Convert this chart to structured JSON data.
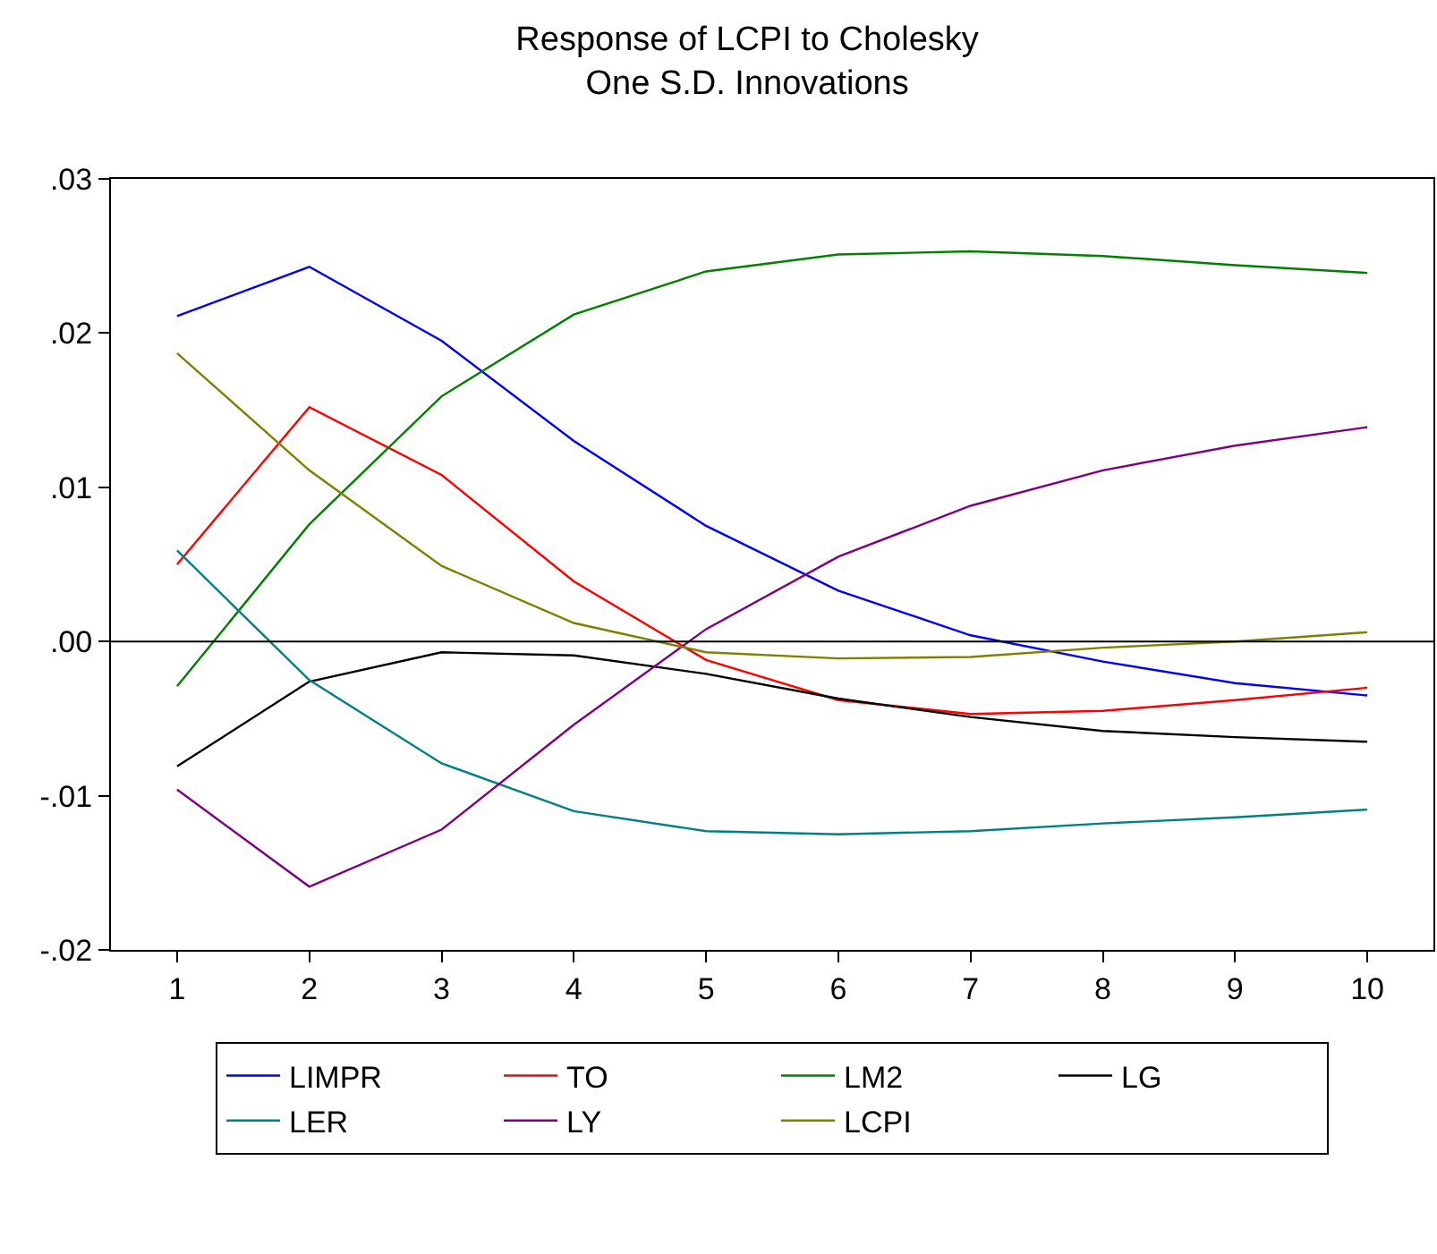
{
  "chart_data": {
    "type": "line",
    "title": "Response of LCPI to Cholesky\nOne S.D. Innovations",
    "categories": [
      "1",
      "2",
      "3",
      "4",
      "5",
      "6",
      "7",
      "8",
      "9",
      "10"
    ],
    "ylim": [
      -0.02,
      0.03
    ],
    "yticks": [
      {
        "value": -0.02,
        "label": "-.02"
      },
      {
        "value": -0.01,
        "label": "-.01"
      },
      {
        "value": 0,
        "label": ".00"
      },
      {
        "value": 0.01,
        "label": ".01"
      },
      {
        "value": 0.02,
        "label": ".02"
      },
      {
        "value": 0.03,
        "label": ".03"
      }
    ],
    "grid": false,
    "legend": "bottom",
    "marker": "none",
    "line_style": "solid",
    "ref_lines": [
      {
        "axis": "y",
        "value": 0,
        "color": "#000000"
      }
    ],
    "series": [
      {
        "name": "LIMPR",
        "color": "#0000ff",
        "values": [
          0.0211,
          0.0243,
          0.0195,
          0.013,
          0.0075,
          0.0033,
          0.0004,
          -0.0013,
          -0.0027,
          -0.0035
        ]
      },
      {
        "name": "TO",
        "color": "#ff0000",
        "values": [
          0.005,
          0.0152,
          0.0108,
          0.0039,
          -0.0012,
          -0.0038,
          -0.0047,
          -0.0045,
          -0.0038,
          -0.003
        ]
      },
      {
        "name": "LM2",
        "color": "#008000",
        "values": [
          -0.0029,
          0.0076,
          0.0159,
          0.0212,
          0.024,
          0.0251,
          0.0253,
          0.025,
          0.0244,
          0.0239
        ]
      },
      {
        "name": "LG",
        "color": "#000000",
        "values": [
          -0.0081,
          -0.0026,
          -0.0007,
          -0.0009,
          -0.0021,
          -0.0037,
          -0.0049,
          -0.0058,
          -0.0062,
          -0.0065
        ]
      },
      {
        "name": "LER",
        "color": "#008080",
        "values": [
          0.0059,
          -0.0025,
          -0.0079,
          -0.011,
          -0.0123,
          -0.0125,
          -0.0123,
          -0.0118,
          -0.0114,
          -0.0109
        ]
      },
      {
        "name": "LY",
        "color": "#800080",
        "values": [
          -0.0096,
          -0.0159,
          -0.0122,
          -0.0054,
          0.0008,
          0.0055,
          0.0088,
          0.0111,
          0.0127,
          0.0139
        ]
      },
      {
        "name": "LCPI",
        "color": "#808000",
        "values": [
          0.0187,
          0.0111,
          0.0049,
          0.0012,
          -0.0007,
          -0.0011,
          -0.001,
          -0.0004,
          0.0,
          0.0006
        ]
      }
    ]
  }
}
